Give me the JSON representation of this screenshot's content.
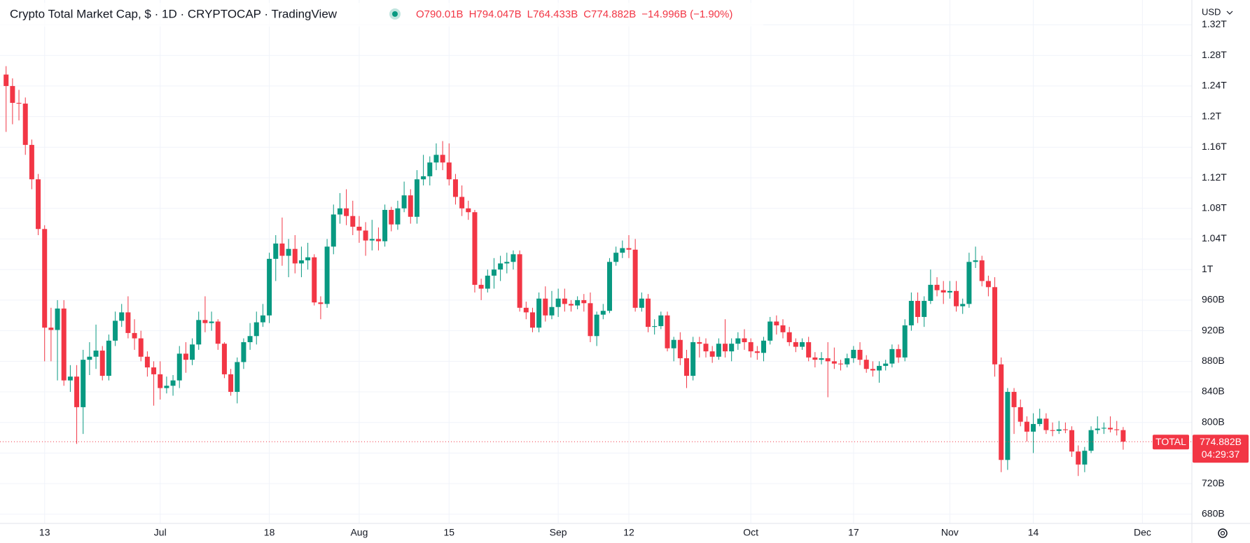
{
  "chart_data": {
    "type": "candlestick",
    "title": "Crypto Total Market Cap, $ · 1D · CRYPTOCAP · TradingView",
    "ohlc_text": [
      "O790.01B",
      "H794.047B",
      "L764.433B",
      "C774.882B",
      "−14.996B (−1.90%)"
    ],
    "currency": "USD",
    "up_color": "#089981",
    "down_color": "#f23645",
    "grid": true,
    "xlim": [
      -0.95,
      184.7
    ],
    "xticks": [
      {
        "value": 6,
        "label": "13"
      },
      {
        "value": 24,
        "label": "Jul"
      },
      {
        "value": 41,
        "label": "18"
      },
      {
        "value": 55,
        "label": "Aug"
      },
      {
        "value": 69,
        "label": "15"
      },
      {
        "value": 86,
        "label": "Sep"
      },
      {
        "value": 97,
        "label": "12"
      },
      {
        "value": 116,
        "label": "Oct"
      },
      {
        "value": 132,
        "label": "17"
      },
      {
        "value": 147,
        "label": "Nov"
      },
      {
        "value": 160,
        "label": "14"
      },
      {
        "value": 177,
        "label": "Dec"
      }
    ],
    "ylim": [
      668,
      1352.5
    ],
    "yticks": [
      {
        "value": 680,
        "label": "680B"
      },
      {
        "value": 720,
        "label": "720B"
      },
      {
        "value": 760,
        "label": "760B"
      },
      {
        "value": 800,
        "label": "800B"
      },
      {
        "value": 840,
        "label": "840B"
      },
      {
        "value": 880,
        "label": "880B"
      },
      {
        "value": 920,
        "label": "920B"
      },
      {
        "value": 960,
        "label": "960B"
      },
      {
        "value": 1000,
        "label": "1T"
      },
      {
        "value": 1040,
        "label": "1.04T"
      },
      {
        "value": 1080,
        "label": "1.08T"
      },
      {
        "value": 1120,
        "label": "1.12T"
      },
      {
        "value": 1160,
        "label": "1.16T"
      },
      {
        "value": 1200,
        "label": "1.2T"
      },
      {
        "value": 1240,
        "label": "1.24T"
      },
      {
        "value": 1280,
        "label": "1.28T"
      },
      {
        "value": 1320,
        "label": "1.32T"
      }
    ],
    "last_price": {
      "name": "TOTAL",
      "value": 774.882,
      "label": "774.882B",
      "countdown": "04:29:37"
    },
    "open": [
      1255,
      1240,
      1218,
      1217,
      1163,
      1118,
      1053,
      924,
      921,
      949,
      855,
      860,
      820,
      882,
      886,
      894,
      861,
      907,
      933,
      944,
      917,
      910,
      886,
      872,
      863,
      845,
      848,
      855,
      890,
      882,
      902,
      934,
      930,
      932,
      903,
      863,
      840,
      879,
      905,
      913,
      931,
      940,
      1014,
      1034,
      1018,
      1027,
      1008,
      1012,
      1016,
      957,
      955,
      1030,
      1072,
      1080,
      1070,
      1056,
      1051,
      1038,
      1040,
      1037,
      1078,
      1059,
      1080,
      1097,
      1069,
      1118,
      1122,
      1140,
      1150,
      1140,
      1118,
      1095,
      1080,
      1075,
      980,
      975,
      992,
      1000,
      1008,
      1010,
      1020,
      950,
      944,
      924,
      962,
      940,
      951,
      962,
      955,
      953,
      960,
      956,
      913,
      941,
      946,
      1010,
      1022,
      1028,
      1026,
      950,
      962,
      925,
      926,
      940,
      897,
      908,
      884,
      861,
      905,
      903,
      893,
      886,
      903,
      893,
      903,
      910,
      905,
      893,
      891,
      907,
      932,
      927,
      918,
      905,
      899,
      905,
      885,
      882,
      884,
      880,
      877,
      876,
      884,
      895,
      882,
      870,
      868,
      874,
      877,
      896,
      885,
      927,
      959,
      938,
      959,
      980,
      973,
      970,
      972,
      952,
      955,
      1010,
      1012,
      985,
      977,
      876,
      751,
      840,
      820,
      801,
      788,
      798,
      805,
      790,
      789,
      791,
      790,
      762,
      745,
      763,
      790,
      792,
      793,
      791,
      790.01
    ],
    "high": [
      1266,
      1250,
      1235,
      1225,
      1170,
      1125,
      1058,
      950,
      960,
      960,
      875,
      875,
      895,
      905,
      928,
      900,
      915,
      945,
      955,
      965,
      935,
      920,
      893,
      880,
      880,
      860,
      862,
      900,
      905,
      910,
      945,
      965,
      945,
      935,
      905,
      870,
      885,
      910,
      930,
      945,
      955,
      1022,
      1045,
      1068,
      1040,
      1045,
      1030,
      1035,
      1020,
      965,
      1040,
      1085,
      1100,
      1105,
      1090,
      1070,
      1062,
      1065,
      1055,
      1085,
      1082,
      1090,
      1115,
      1105,
      1130,
      1150,
      1148,
      1165,
      1168,
      1165,
      1125,
      1110,
      1090,
      1078,
      988,
      1000,
      1015,
      1018,
      1022,
      1025,
      1025,
      958,
      950,
      970,
      978,
      972,
      975,
      975,
      960,
      965,
      968,
      970,
      945,
      955,
      1015,
      1030,
      1038,
      1045,
      1040,
      970,
      968,
      935,
      945,
      945,
      912,
      918,
      895,
      912,
      912,
      910,
      900,
      910,
      935,
      910,
      918,
      922,
      910,
      900,
      912,
      938,
      940,
      935,
      925,
      910,
      910,
      912,
      892,
      892,
      905,
      898,
      882,
      890,
      900,
      905,
      888,
      880,
      880,
      882,
      902,
      902,
      935,
      970,
      970,
      965,
      1000,
      990,
      985,
      985,
      985,
      962,
      1022,
      1030,
      1018,
      992,
      990,
      885,
      845,
      845,
      830,
      808,
      812,
      818,
      812,
      800,
      802,
      800,
      795,
      770,
      768,
      795,
      808,
      800,
      808,
      802,
      794.047
    ],
    "low": [
      1180,
      1190,
      1195,
      1150,
      1105,
      1045,
      880,
      880,
      855,
      848,
      840,
      772,
      785,
      862,
      870,
      855,
      855,
      900,
      925,
      910,
      895,
      880,
      860,
      822,
      830,
      838,
      835,
      845,
      865,
      875,
      895,
      918,
      920,
      895,
      858,
      835,
      825,
      870,
      895,
      902,
      925,
      930,
      985,
      1005,
      990,
      995,
      990,
      1000,
      953,
      935,
      950,
      1020,
      1060,
      1058,
      1045,
      1035,
      1018,
      1025,
      1025,
      1030,
      1050,
      1052,
      1075,
      1060,
      1060,
      1110,
      1110,
      1130,
      1130,
      1110,
      1085,
      1070,
      1065,
      970,
      960,
      970,
      975,
      985,
      995,
      1000,
      945,
      935,
      918,
      918,
      932,
      935,
      938,
      945,
      945,
      948,
      945,
      905,
      900,
      935,
      943,
      1005,
      1015,
      1015,
      945,
      945,
      918,
      915,
      922,
      893,
      880,
      875,
      845,
      855,
      885,
      885,
      878,
      882,
      885,
      880,
      895,
      895,
      885,
      882,
      880,
      902,
      915,
      910,
      900,
      892,
      895,
      880,
      872,
      876,
      833,
      870,
      868,
      872,
      878,
      875,
      865,
      860,
      852,
      868,
      872,
      878,
      880,
      920,
      930,
      925,
      955,
      965,
      955,
      962,
      945,
      942,
      950,
      1002,
      978,
      965,
      860,
      735,
      738,
      785,
      795,
      775,
      760,
      795,
      785,
      782,
      785,
      786,
      755,
      730,
      735,
      760,
      785,
      785,
      787,
      783,
      764.433
    ],
    "close": [
      1240,
      1218,
      1217,
      1163,
      1118,
      1053,
      924,
      921,
      949,
      855,
      860,
      820,
      882,
      886,
      894,
      861,
      907,
      933,
      944,
      917,
      910,
      886,
      872,
      863,
      845,
      848,
      855,
      890,
      882,
      902,
      934,
      930,
      932,
      903,
      863,
      840,
      879,
      905,
      913,
      931,
      940,
      1014,
      1034,
      1018,
      1027,
      1008,
      1012,
      1016,
      957,
      955,
      1030,
      1072,
      1080,
      1070,
      1056,
      1051,
      1038,
      1040,
      1037,
      1078,
      1059,
      1080,
      1097,
      1069,
      1118,
      1122,
      1140,
      1150,
      1140,
      1118,
      1095,
      1080,
      1075,
      980,
      975,
      992,
      1000,
      1008,
      1010,
      1020,
      950,
      944,
      924,
      962,
      940,
      951,
      962,
      955,
      953,
      960,
      956,
      913,
      941,
      946,
      1010,
      1022,
      1028,
      1026,
      950,
      962,
      925,
      926,
      940,
      897,
      908,
      884,
      861,
      905,
      903,
      893,
      886,
      903,
      893,
      903,
      910,
      905,
      893,
      891,
      907,
      932,
      927,
      918,
      905,
      899,
      905,
      885,
      882,
      884,
      880,
      877,
      876,
      884,
      895,
      882,
      870,
      868,
      874,
      877,
      896,
      885,
      927,
      959,
      938,
      959,
      980,
      973,
      970,
      972,
      952,
      955,
      1010,
      1012,
      985,
      977,
      876,
      751,
      840,
      820,
      801,
      788,
      798,
      805,
      790,
      789,
      791,
      790,
      762,
      745,
      763,
      790,
      792,
      793,
      791,
      790,
      774.882
    ]
  }
}
